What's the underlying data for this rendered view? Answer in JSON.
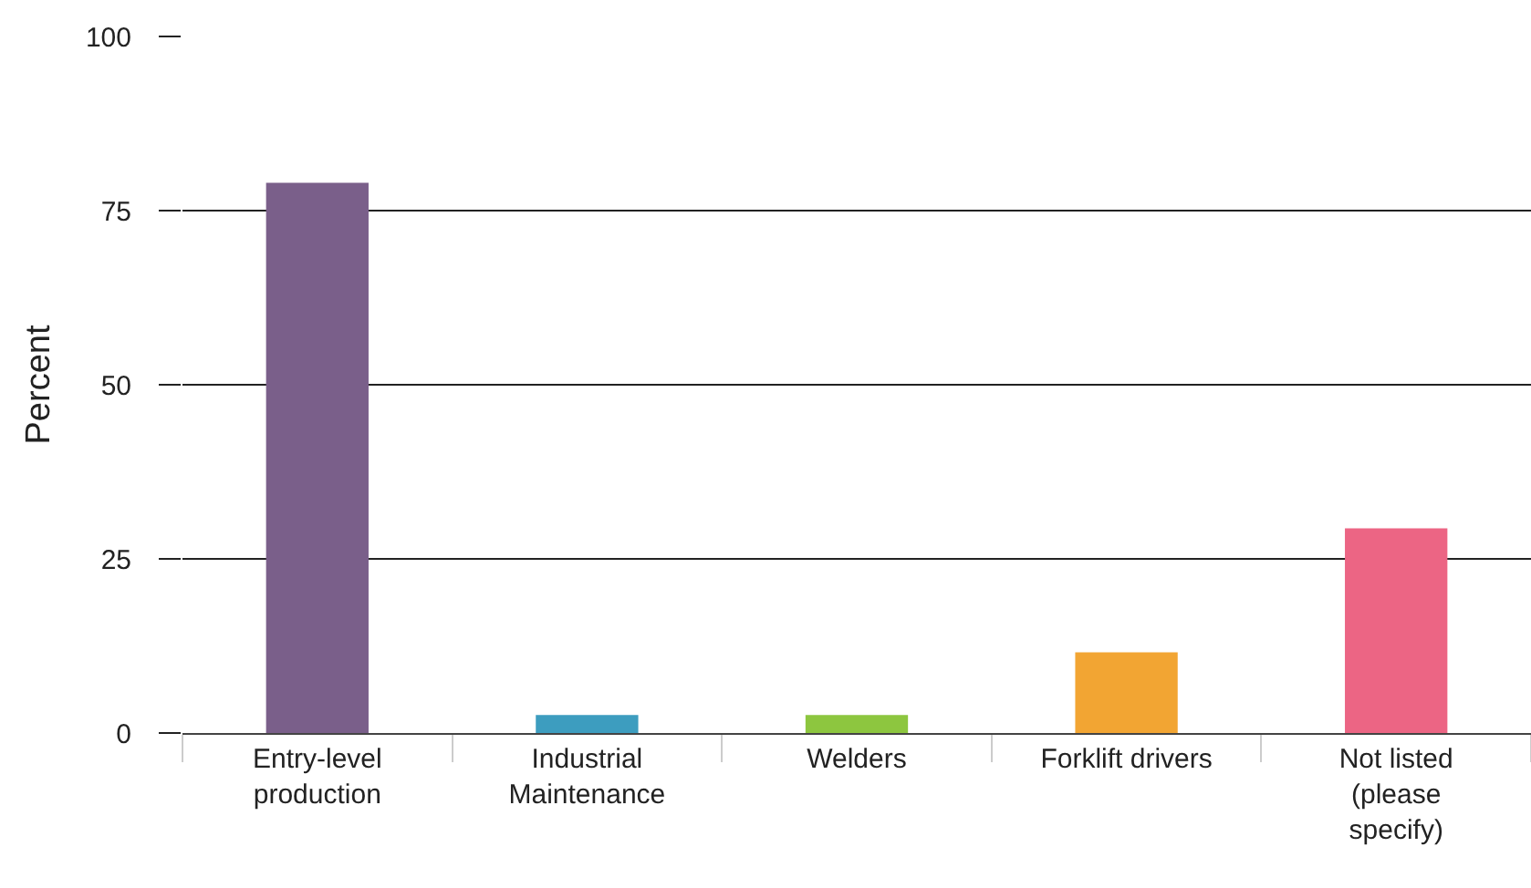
{
  "chart_data": {
    "type": "bar",
    "ylabel": "Percent",
    "categories": [
      "Entry-level\nproduction",
      "Industrial\nMaintenance",
      "Welders",
      "Forklift drivers",
      "Not listed\n(please\nspecify)"
    ],
    "values": [
      79,
      2.6,
      2.6,
      11.6,
      29.4
    ],
    "colors": [
      "#7a5f8a",
      "#3d9dbf",
      "#8dc63f",
      "#f2a533",
      "#ec6584"
    ],
    "ylim": [
      0,
      100
    ],
    "yticks": [
      0,
      25,
      50,
      75,
      100
    ],
    "grid": "y"
  }
}
